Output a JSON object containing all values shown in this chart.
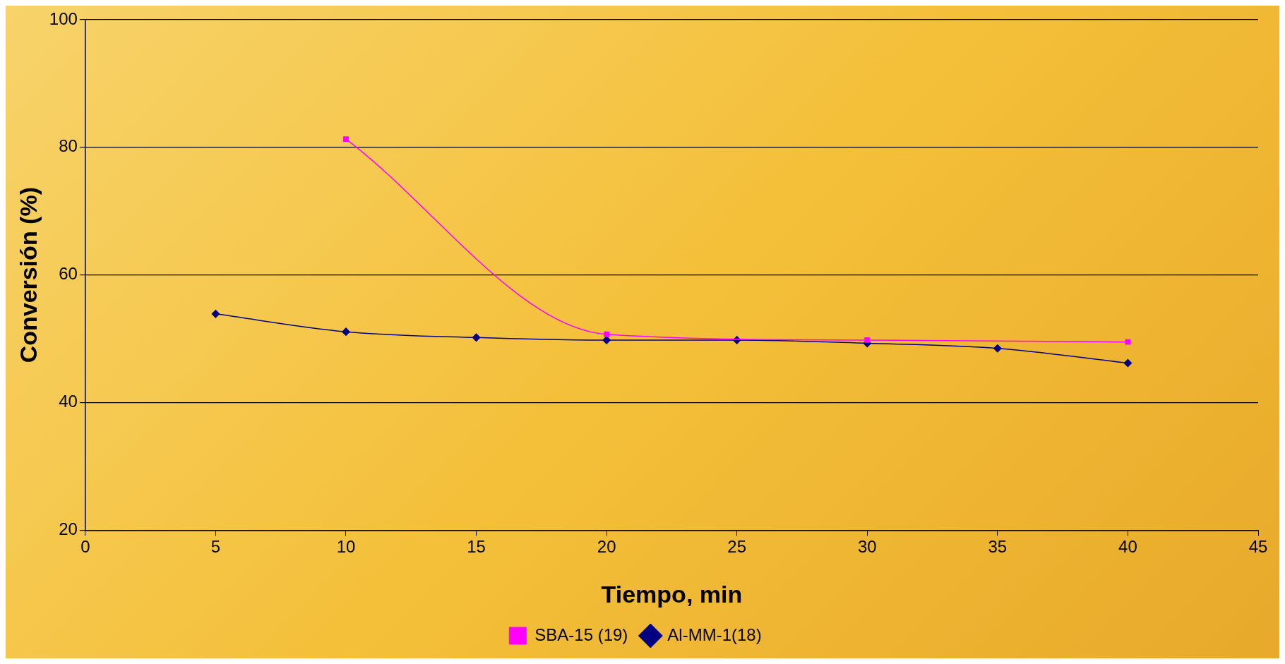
{
  "chart_data": {
    "type": "line",
    "xlabel": "Tiempo, min",
    "ylabel": "Conversión (%)",
    "xlim": [
      0,
      45
    ],
    "xticks": [
      0,
      5,
      10,
      15,
      20,
      25,
      30,
      35,
      40,
      45
    ],
    "ylim": [
      20,
      100
    ],
    "yticks": [
      20,
      40,
      60,
      80,
      100
    ],
    "grid": "y",
    "legend": "bottom",
    "series": [
      {
        "name": "SBA-15 (19)",
        "color": "#ff00ff",
        "marker": "square",
        "x": [
          10,
          20,
          30,
          40
        ],
        "values": [
          81.3,
          50.7,
          49.8,
          49.5
        ]
      },
      {
        "name": "Al-MM-1(18)",
        "color": "#000080",
        "marker": "diamond",
        "x": [
          5,
          10,
          15,
          20,
          25,
          30,
          35,
          40
        ],
        "values": [
          53.9,
          51.1,
          50.2,
          49.8,
          49.8,
          49.3,
          48.5,
          46.2
        ]
      }
    ]
  }
}
